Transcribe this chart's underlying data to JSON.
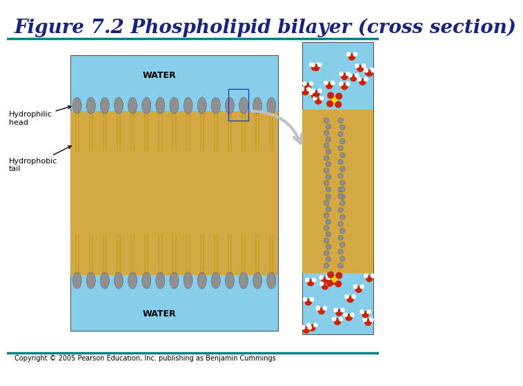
{
  "title": "Figure 7.2 Phospholipid bilayer (cross section)",
  "title_color": "#1a237e",
  "title_fontsize": 20,
  "title_fontstyle": "italic",
  "title_fontweight": "bold",
  "teal_line_color": "#008080",
  "copyright_text": "Copyright © 2005 Pearson Education, Inc. publishing as Benjamin Cummings",
  "copyright_fontsize": 7,
  "water_label": "WATER",
  "water_label_fontsize": 9,
  "bilayer_bg_color": "#87CEEB",
  "tail_fill_color": "#D4A843",
  "head_color": "#909090",
  "hydrophilic_label": "Hydrophilic\nhead",
  "hydrophobic_label": "Hydrophobic\ntail",
  "label_fontsize": 8
}
